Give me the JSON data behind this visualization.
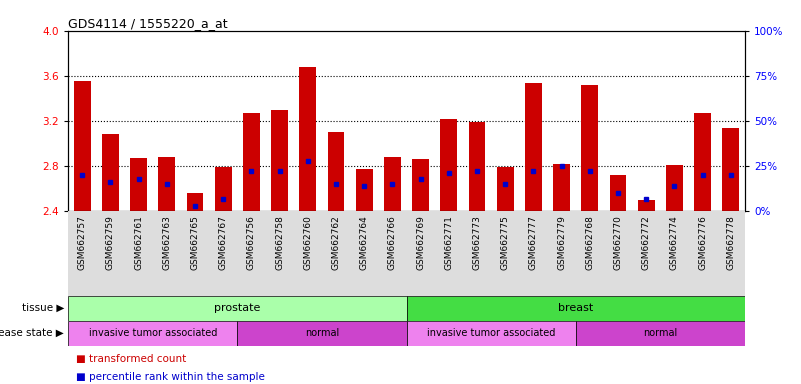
{
  "title": "GDS4114 / 1555220_a_at",
  "samples": [
    "GSM662757",
    "GSM662759",
    "GSM662761",
    "GSM662763",
    "GSM662765",
    "GSM662767",
    "GSM662756",
    "GSM662758",
    "GSM662760",
    "GSM662762",
    "GSM662764",
    "GSM662766",
    "GSM662769",
    "GSM662771",
    "GSM662773",
    "GSM662775",
    "GSM662777",
    "GSM662779",
    "GSM662768",
    "GSM662770",
    "GSM662772",
    "GSM662774",
    "GSM662776",
    "GSM662778"
  ],
  "transformed_count": [
    3.55,
    3.08,
    2.87,
    2.88,
    2.56,
    2.79,
    3.27,
    3.3,
    3.68,
    3.1,
    2.77,
    2.88,
    2.86,
    3.22,
    3.19,
    2.79,
    3.54,
    2.82,
    3.52,
    2.72,
    2.5,
    2.81,
    3.27,
    3.14
  ],
  "percentile": [
    20,
    16,
    18,
    15,
    3,
    7,
    22,
    22,
    28,
    15,
    14,
    15,
    18,
    21,
    22,
    15,
    22,
    25,
    22,
    10,
    7,
    14,
    20,
    20
  ],
  "ymin": 2.4,
  "ymax": 4.0,
  "yticks_left": [
    2.4,
    2.8,
    3.2,
    3.6,
    4.0
  ],
  "yticks_right": [
    0,
    25,
    50,
    75,
    100
  ],
  "bar_color": "#cc0000",
  "marker_color": "#0000cc",
  "tissue_groups": [
    {
      "label": "prostate",
      "start": 0,
      "end": 12,
      "color": "#aaffaa"
    },
    {
      "label": "breast",
      "start": 12,
      "end": 24,
      "color": "#44dd44"
    }
  ],
  "disease_groups": [
    {
      "label": "invasive tumor associated",
      "start": 0,
      "end": 6,
      "color": "#ee82ee"
    },
    {
      "label": "normal",
      "start": 6,
      "end": 12,
      "color": "#cc44cc"
    },
    {
      "label": "invasive tumor associated",
      "start": 12,
      "end": 18,
      "color": "#ee82ee"
    },
    {
      "label": "normal",
      "start": 18,
      "end": 24,
      "color": "#cc44cc"
    }
  ],
  "background_color": "#ffffff",
  "grid_dotted_color": "#000000",
  "legend_bar_color": "#cc0000",
  "legend_marker_color": "#0000cc"
}
